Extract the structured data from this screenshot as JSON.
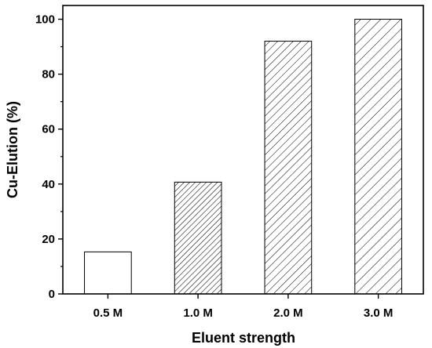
{
  "chart_data": {
    "type": "bar",
    "title": "",
    "xlabel": "Eluent strength",
    "ylabel": "Cu-Elution (%)",
    "categories": [
      "0.5 M",
      "1.0 M",
      "2.0 M",
      "3.0 M"
    ],
    "values": [
      15.3,
      40.7,
      92.0,
      100.0
    ],
    "ylim": [
      0,
      105
    ],
    "yticks": [
      0,
      20,
      40,
      60,
      80,
      100
    ],
    "grid": false,
    "legend": "none",
    "bar_fills": [
      "none",
      "dense-hatch",
      "medium-hatch",
      "sparse-hatch"
    ],
    "bar_color": "#000000"
  }
}
